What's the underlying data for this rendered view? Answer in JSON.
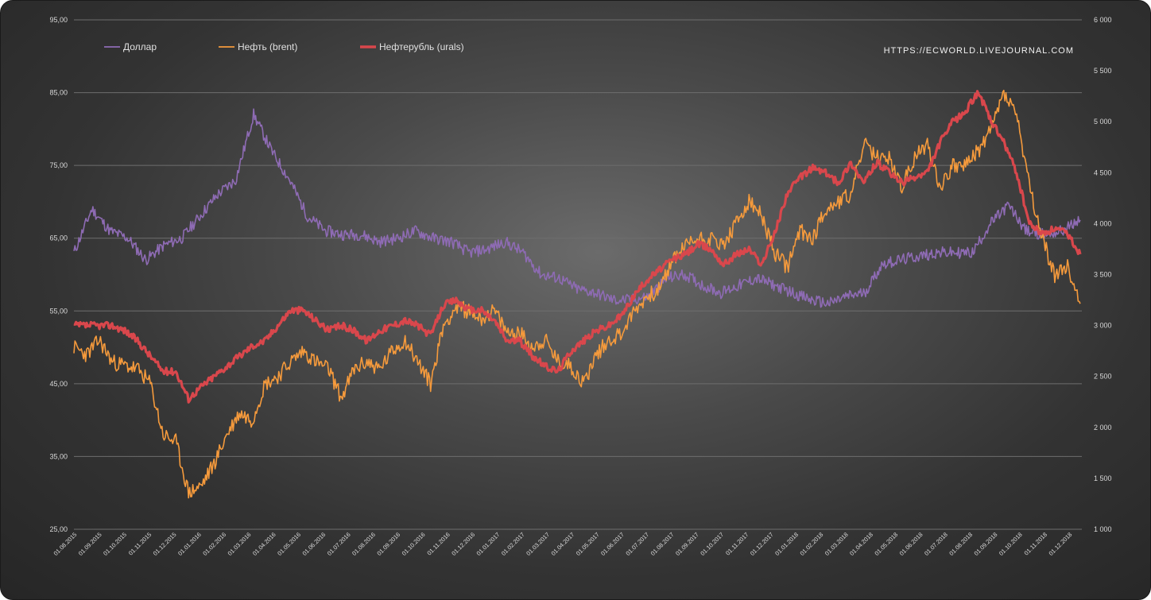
{
  "chart_data": {
    "type": "line",
    "title": "",
    "watermark": "HTTPS://ECWORLD.LIVEJOURNAL.COM",
    "grid": true,
    "legend_position": "top-left",
    "y_left": {
      "ticks": [
        "25,00",
        "35,00",
        "45,00",
        "55,00",
        "65,00",
        "75,00",
        "85,00",
        "95,00"
      ],
      "range": [
        25,
        95
      ]
    },
    "y_right": {
      "ticks": [
        "1 000",
        "1 500",
        "2 000",
        "2 500",
        "3 000",
        "3 500",
        "4 000",
        "4 500",
        "5 000",
        "5 500",
        "6 000"
      ],
      "range": [
        1000,
        6000
      ]
    },
    "x_ticks": [
      "01.08.2015",
      "01.09.2015",
      "01.10.2015",
      "01.11.2015",
      "01.12.2015",
      "01.01.2016",
      "01.02.2016",
      "01.03.2016",
      "01.04.2016",
      "01.05.2016",
      "01.06.2016",
      "01.07.2016",
      "01.08.2016",
      "01.09.2016",
      "01.10.2016",
      "01.11.2016",
      "01.12.2016",
      "01.01.2017",
      "01.02.2017",
      "01.03.2017",
      "01.04.2017",
      "01.05.2017",
      "01.06.2017",
      "01.07.2017",
      "01.08.2017",
      "01.09.2017",
      "01.10.2017",
      "01.11.2017",
      "01.12.2017",
      "01.01.2018",
      "01.02.2018",
      "01.03.2018",
      "01.04.2018",
      "01.05.2018",
      "01.06.2018",
      "01.07.2018",
      "01.08.2018",
      "01.09.2018",
      "01.10.2018",
      "01.11.2018",
      "01.12.2018"
    ],
    "series": [
      {
        "name": "Доллар",
        "axis": "left",
        "color": "#8e6bb4",
        "values": [
          63,
          69,
          66,
          65,
          62,
          64,
          65,
          68,
          71,
          73,
          82,
          77,
          73,
          68,
          66,
          65.5,
          65.5,
          64.5,
          65,
          66,
          65,
          64.5,
          63,
          63.5,
          64.5,
          63,
          60,
          59.5,
          58,
          57.5,
          56.5,
          56.5,
          57,
          59.5,
          60,
          58.5,
          57.5,
          58.5,
          59.5,
          58.5,
          57.5,
          56.5,
          56,
          57,
          57.5,
          61.5,
          62,
          62.5,
          63,
          63,
          63,
          67,
          69.5,
          66,
          65.5,
          66,
          67.5
        ]
      },
      {
        "name": "Нефть (brent)",
        "axis": "left",
        "color": "#f59a3c",
        "values": [
          50,
          49,
          51,
          48,
          47.5,
          47,
          45,
          38,
          37,
          30,
          31,
          34,
          38,
          41,
          40,
          45,
          46,
          48,
          49.5,
          48,
          47,
          43,
          47,
          48,
          47,
          49.5,
          51,
          48,
          45,
          53,
          55.5,
          55,
          54,
          55,
          52,
          52,
          50,
          51,
          48,
          47.5,
          45,
          49,
          51,
          52,
          55,
          57,
          58,
          62,
          64,
          65,
          65,
          64,
          67,
          70,
          68,
          63,
          61,
          66,
          65,
          69,
          70,
          71,
          78,
          76,
          76,
          72,
          76,
          78,
          72,
          75,
          75,
          77,
          80,
          85,
          82,
          72,
          65,
          60,
          61,
          56
        ]
      },
      {
        "name": "Нефтерубль (urals)",
        "axis": "right",
        "color": "#d9474c",
        "values": [
          3000,
          3000,
          3000,
          3000,
          2950,
          2850,
          2700,
          2550,
          2550,
          2280,
          2400,
          2500,
          2600,
          2700,
          2800,
          2850,
          3000,
          3150,
          3150,
          3050,
          2950,
          3000,
          2950,
          2850,
          2950,
          3000,
          3050,
          3000,
          2900,
          3200,
          3250,
          3150,
          3150,
          3050,
          2850,
          2850,
          2700,
          2600,
          2550,
          2750,
          2850,
          2950,
          3000,
          3100,
          3300,
          3450,
          3550,
          3650,
          3700,
          3800,
          3750,
          3600,
          3700,
          3750,
          3600,
          3900,
          4300,
          4450,
          4550,
          4500,
          4400,
          4600,
          4400,
          4600,
          4500,
          4400,
          4450,
          4500,
          4800,
          5000,
          5100,
          5300,
          5000,
          4800,
          4500,
          4000,
          3900,
          3950,
          3900,
          3700
        ]
      }
    ]
  }
}
